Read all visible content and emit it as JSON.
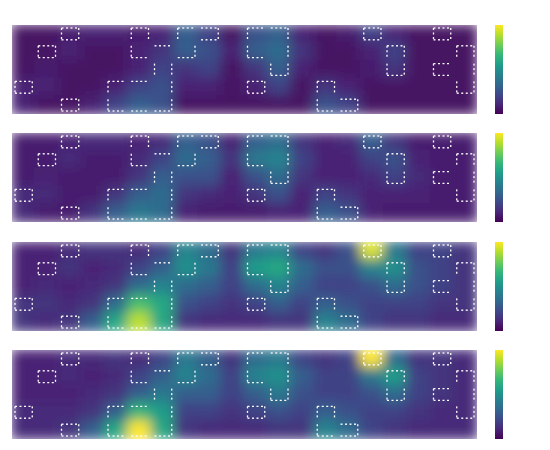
{
  "chart_data": [
    {
      "type": "heatmap",
      "colormap": "viridis",
      "zlim": [
        0,
        1
      ],
      "values": [
        [
          0.05,
          0.05,
          0.08,
          0.1,
          0.1,
          0.08,
          0.1,
          0.3,
          0.2,
          0.05,
          0.25,
          0.3,
          0.1,
          0.05,
          0.08,
          0.2,
          0.1,
          0.05,
          0.05,
          0.05
        ],
        [
          0.05,
          0.05,
          0.1,
          0.05,
          0.05,
          0.1,
          0.15,
          0.3,
          0.25,
          0.1,
          0.3,
          0.35,
          0.15,
          0.05,
          0.05,
          0.1,
          0.2,
          0.05,
          0.05,
          0.05
        ],
        [
          0.05,
          0.08,
          0.05,
          0.05,
          0.05,
          0.1,
          0.2,
          0.15,
          0.2,
          0.05,
          0.15,
          0.3,
          0.1,
          0.05,
          0.05,
          0.08,
          0.15,
          0.05,
          0.05,
          0.05
        ],
        [
          0.1,
          0.1,
          0.05,
          0.05,
          0.1,
          0.2,
          0.25,
          0.1,
          0.1,
          0.05,
          0.1,
          0.2,
          0.05,
          0.15,
          0.1,
          0.05,
          0.05,
          0.05,
          0.05,
          0.05
        ],
        [
          0.1,
          0.05,
          0.05,
          0.1,
          0.2,
          0.3,
          0.25,
          0.05,
          0.05,
          0.05,
          0.05,
          0.05,
          0.05,
          0.25,
          0.2,
          0.05,
          0.05,
          0.05,
          0.05,
          0.05
        ]
      ]
    },
    {
      "type": "heatmap",
      "colormap": "viridis",
      "zlim": [
        0,
        1
      ],
      "values": [
        [
          0.08,
          0.08,
          0.1,
          0.12,
          0.12,
          0.1,
          0.12,
          0.3,
          0.25,
          0.1,
          0.3,
          0.35,
          0.15,
          0.1,
          0.12,
          0.3,
          0.15,
          0.08,
          0.08,
          0.08
        ],
        [
          0.08,
          0.08,
          0.12,
          0.08,
          0.08,
          0.12,
          0.2,
          0.35,
          0.3,
          0.15,
          0.4,
          0.45,
          0.2,
          0.1,
          0.1,
          0.2,
          0.25,
          0.1,
          0.08,
          0.08
        ],
        [
          0.08,
          0.1,
          0.08,
          0.08,
          0.08,
          0.15,
          0.3,
          0.25,
          0.25,
          0.1,
          0.25,
          0.35,
          0.15,
          0.1,
          0.1,
          0.12,
          0.2,
          0.12,
          0.08,
          0.08
        ],
        [
          0.12,
          0.12,
          0.08,
          0.08,
          0.15,
          0.3,
          0.35,
          0.15,
          0.12,
          0.1,
          0.15,
          0.25,
          0.1,
          0.2,
          0.15,
          0.1,
          0.1,
          0.1,
          0.08,
          0.08
        ],
        [
          0.12,
          0.08,
          0.08,
          0.15,
          0.3,
          0.4,
          0.35,
          0.1,
          0.08,
          0.08,
          0.08,
          0.1,
          0.1,
          0.3,
          0.25,
          0.1,
          0.08,
          0.08,
          0.08,
          0.08
        ]
      ]
    },
    {
      "type": "heatmap",
      "colormap": "viridis",
      "zlim": [
        0,
        1
      ],
      "values": [
        [
          0.1,
          0.1,
          0.12,
          0.15,
          0.15,
          0.12,
          0.2,
          0.45,
          0.35,
          0.15,
          0.4,
          0.45,
          0.2,
          0.15,
          0.25,
          0.95,
          0.4,
          0.2,
          0.2,
          0.15
        ],
        [
          0.1,
          0.1,
          0.15,
          0.1,
          0.12,
          0.2,
          0.3,
          0.5,
          0.4,
          0.2,
          0.55,
          0.6,
          0.35,
          0.25,
          0.25,
          0.45,
          0.5,
          0.25,
          0.2,
          0.15
        ],
        [
          0.1,
          0.12,
          0.1,
          0.12,
          0.15,
          0.35,
          0.45,
          0.35,
          0.3,
          0.2,
          0.35,
          0.45,
          0.3,
          0.2,
          0.2,
          0.25,
          0.35,
          0.25,
          0.2,
          0.15
        ],
        [
          0.15,
          0.15,
          0.12,
          0.15,
          0.35,
          0.7,
          0.6,
          0.25,
          0.2,
          0.15,
          0.2,
          0.3,
          0.2,
          0.3,
          0.25,
          0.2,
          0.2,
          0.2,
          0.15,
          0.15
        ],
        [
          0.15,
          0.12,
          0.15,
          0.3,
          0.6,
          0.9,
          0.6,
          0.15,
          0.12,
          0.12,
          0.12,
          0.15,
          0.15,
          0.45,
          0.35,
          0.2,
          0.15,
          0.15,
          0.12,
          0.12
        ]
      ]
    },
    {
      "type": "heatmap",
      "colormap": "viridis",
      "zlim": [
        0,
        1
      ],
      "values": [
        [
          0.1,
          0.1,
          0.12,
          0.12,
          0.15,
          0.12,
          0.2,
          0.4,
          0.3,
          0.15,
          0.35,
          0.4,
          0.2,
          0.15,
          0.2,
          1.0,
          0.35,
          0.15,
          0.15,
          0.12
        ],
        [
          0.1,
          0.1,
          0.12,
          0.1,
          0.12,
          0.2,
          0.3,
          0.45,
          0.35,
          0.2,
          0.45,
          0.5,
          0.3,
          0.2,
          0.2,
          0.4,
          0.55,
          0.2,
          0.15,
          0.12
        ],
        [
          0.1,
          0.1,
          0.1,
          0.12,
          0.15,
          0.3,
          0.4,
          0.3,
          0.3,
          0.2,
          0.3,
          0.4,
          0.25,
          0.2,
          0.2,
          0.25,
          0.35,
          0.2,
          0.15,
          0.12
        ],
        [
          0.12,
          0.12,
          0.12,
          0.15,
          0.3,
          0.65,
          0.55,
          0.2,
          0.2,
          0.15,
          0.2,
          0.25,
          0.2,
          0.3,
          0.25,
          0.2,
          0.2,
          0.15,
          0.12,
          0.12
        ],
        [
          0.12,
          0.12,
          0.15,
          0.3,
          0.6,
          1.0,
          0.6,
          0.15,
          0.12,
          0.12,
          0.12,
          0.15,
          0.15,
          0.45,
          0.35,
          0.2,
          0.15,
          0.12,
          0.12,
          0.12
        ]
      ]
    }
  ],
  "contour_mask": [
    [
      0,
      0,
      1,
      0,
      0,
      1,
      0,
      1,
      1,
      0,
      1,
      1,
      0,
      0,
      0,
      1,
      0,
      0,
      1,
      0
    ],
    [
      0,
      1,
      0,
      0,
      0,
      1,
      1,
      1,
      0,
      0,
      1,
      1,
      0,
      0,
      0,
      0,
      1,
      0,
      0,
      1
    ],
    [
      0,
      0,
      0,
      0,
      0,
      0,
      1,
      0,
      0,
      0,
      0,
      1,
      0,
      0,
      0,
      0,
      1,
      0,
      1,
      1
    ],
    [
      1,
      0,
      0,
      0,
      1,
      1,
      1,
      0,
      0,
      0,
      1,
      0,
      0,
      1,
      0,
      0,
      0,
      0,
      0,
      1
    ],
    [
      0,
      0,
      1,
      0,
      1,
      1,
      1,
      0,
      0,
      0,
      0,
      0,
      0,
      1,
      1,
      0,
      0,
      0,
      0,
      0
    ]
  ]
}
